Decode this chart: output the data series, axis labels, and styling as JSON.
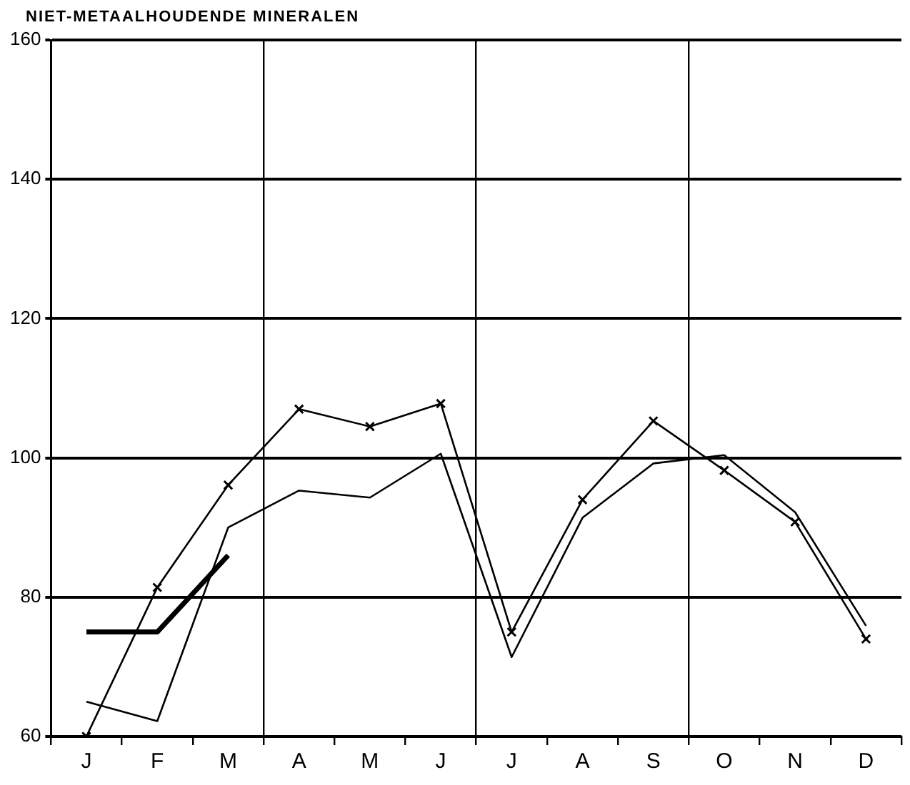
{
  "chart_data": {
    "type": "line",
    "title": "NIET-METAALHOUDENDE MINERALEN",
    "categories": [
      "J",
      "F",
      "M",
      "A",
      "M",
      "J",
      "J",
      "A",
      "S",
      "O",
      "N",
      "D"
    ],
    "series": [
      {
        "color": "#000000",
        "marker": "none",
        "values": [
          75,
          75,
          86,
          null,
          null,
          null,
          null,
          null,
          null,
          null,
          null,
          null
        ]
      },
      {
        "color": "#000000",
        "marker": "cross",
        "values": [
          60,
          81.4,
          96.1,
          107,
          104.5,
          107.8,
          75,
          94,
          105.3,
          98.2,
          90.8,
          74
        ]
      },
      {
        "color": "#000000",
        "marker": "none",
        "values": [
          65,
          62.2,
          90,
          95.3,
          94.3,
          100.6,
          71.4,
          91.4,
          99.2,
          100.4,
          92.2,
          75.9
        ]
      }
    ],
    "ylim": [
      60,
      160
    ],
    "yticks": [
      60,
      80,
      100,
      120,
      140,
      160
    ],
    "grid": true,
    "legend": false,
    "line_style": "solid"
  }
}
